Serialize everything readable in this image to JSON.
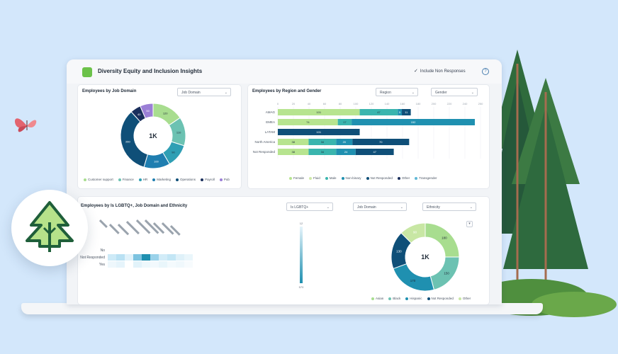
{
  "app": {
    "title": "Diversity Equity and Inclusion Insights",
    "include_non_responses": "Include Non Responses"
  },
  "job_domain_card": {
    "title": "Employees by Job Domain",
    "dropdown": "Job Domain",
    "center_label": "1K",
    "legend": [
      "Customer support",
      "Finance",
      "HR",
      "Marketing",
      "Operations",
      "Payroll",
      "Pub"
    ]
  },
  "region_card": {
    "title": "Employees by Region and Gender",
    "dropdown_region": "Region",
    "dropdown_gender": "Gender",
    "legend": [
      "Female",
      "Fluid",
      "Male",
      "Non-binary",
      "Not Responded",
      "Other",
      "Transgender"
    ]
  },
  "lgbtq_card": {
    "title": "Employees by Is LGBTQ+, Job Domain and Ethnicity",
    "dropdown_lgbtq": "Is LGBTQ+",
    "dropdown_domain": "Job Domain",
    "dropdown_ethnicity": "Ethnicity",
    "row_labels": [
      "No",
      "Not Responded",
      "Yes"
    ],
    "scale_max": "12",
    "scale_min": "570",
    "center_label": "1K",
    "legend": [
      "Asian",
      "Black",
      "Hispanic",
      "Not Responded",
      "Other"
    ]
  },
  "chart_data": [
    {
      "type": "pie",
      "title": "Employees by Job Domain",
      "categories": [
        "Customer support",
        "Finance",
        "HR",
        "Marketing",
        "Operations",
        "Payroll",
        "Pub"
      ],
      "values": [
        120,
        110,
        90,
        100,
        260,
        40,
        50
      ],
      "colors": [
        "#a8dd8f",
        "#6cc2b2",
        "#2f9fb4",
        "#1f7eb0",
        "#0f4f78",
        "#1a2f5c",
        "#9b7fd6"
      ]
    },
    {
      "type": "bar",
      "title": "Employees by Region and Gender",
      "orientation": "horizontal",
      "stacked": true,
      "categories": [
        "AMAG",
        "EMEA",
        "LATAM",
        "North America",
        "Not Responded"
      ],
      "x_ticks": [
        "0",
        "20",
        "40",
        "60",
        "80",
        "100",
        "120",
        "140",
        "160",
        "180",
        "200",
        "220",
        "240",
        "250"
      ],
      "series": [
        {
          "name": "Female",
          "values": [
            101,
            74,
            0,
            38,
            38
          ]
        },
        {
          "name": "Male",
          "values": [
            47,
            17,
            0,
            34,
            34
          ]
        },
        {
          "name": "Non-binary",
          "values": [
            5,
            152,
            0,
            20,
            24
          ]
        },
        {
          "name": "Not Responded",
          "values": [
            11,
            0,
            101,
            70,
            47
          ]
        }
      ]
    },
    {
      "type": "pie",
      "title": "Employees by Is LGBTQ+, Job Domain and Ethnicity",
      "categories": [
        "Asian",
        "Black",
        "Hispanic",
        "Not Responded",
        "Other"
      ],
      "values": [
        180,
        150,
        170,
        130,
        90
      ],
      "colors": [
        "#a8dd8f",
        "#6cc2b2",
        "#1f90b0",
        "#0f4f78",
        "#c8e7a4"
      ]
    }
  ]
}
